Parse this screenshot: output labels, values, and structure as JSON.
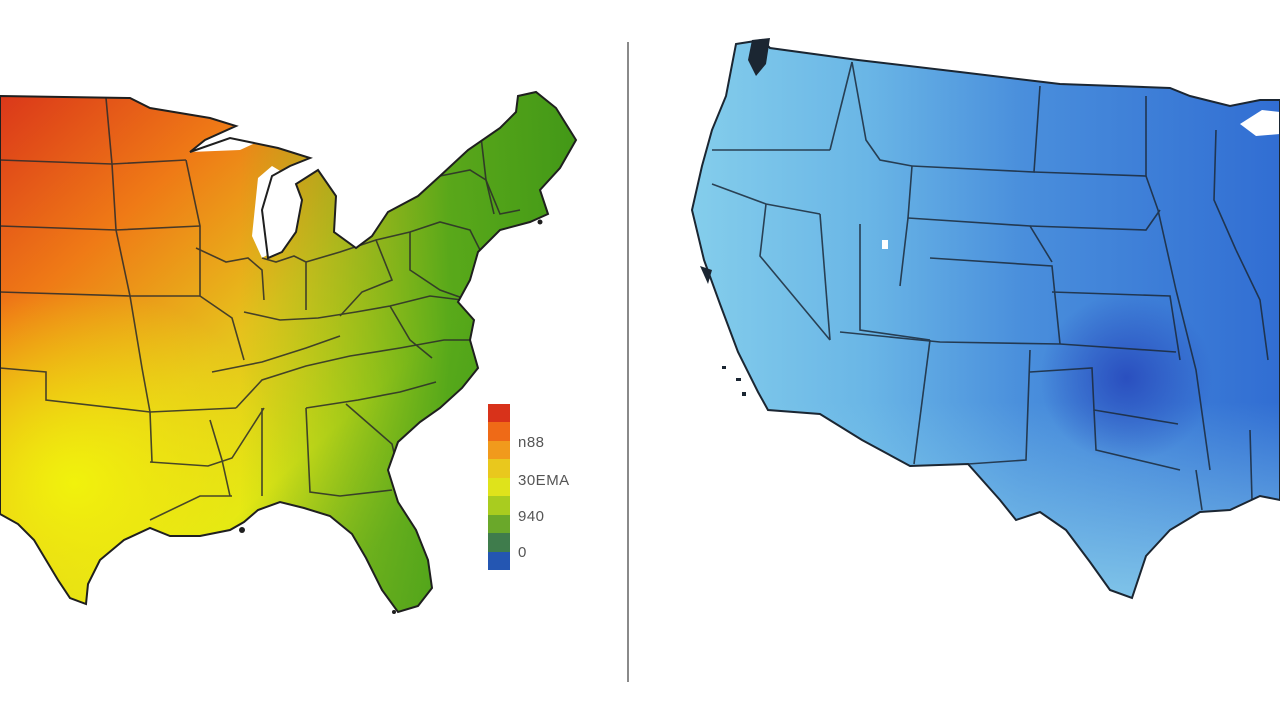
{
  "left_map": {
    "colors": {
      "north": "#e8400f",
      "upper": "#f08a1a",
      "mid": "#d9c81f",
      "south": "#e8ee10",
      "east_green": "#3e9a18",
      "lake": "#ffffff",
      "border": "#2a2a2a"
    }
  },
  "legend": {
    "labels": [
      "n88",
      "30EMA",
      "940",
      "0"
    ],
    "stops": [
      "#d8321a",
      "#ef6a17",
      "#f19a1c",
      "#e9c81d",
      "#dfe31b",
      "#a9cc1f",
      "#6aa82a",
      "#3f7c4c",
      "#2456b2"
    ]
  },
  "right_map": {
    "colors": {
      "west_light": "#7fcbe9",
      "mid_blue": "#4c93dc",
      "north_dark": "#2d6ed1",
      "deep_spot": "#2a56c2",
      "border": "#1c2a3a"
    }
  }
}
